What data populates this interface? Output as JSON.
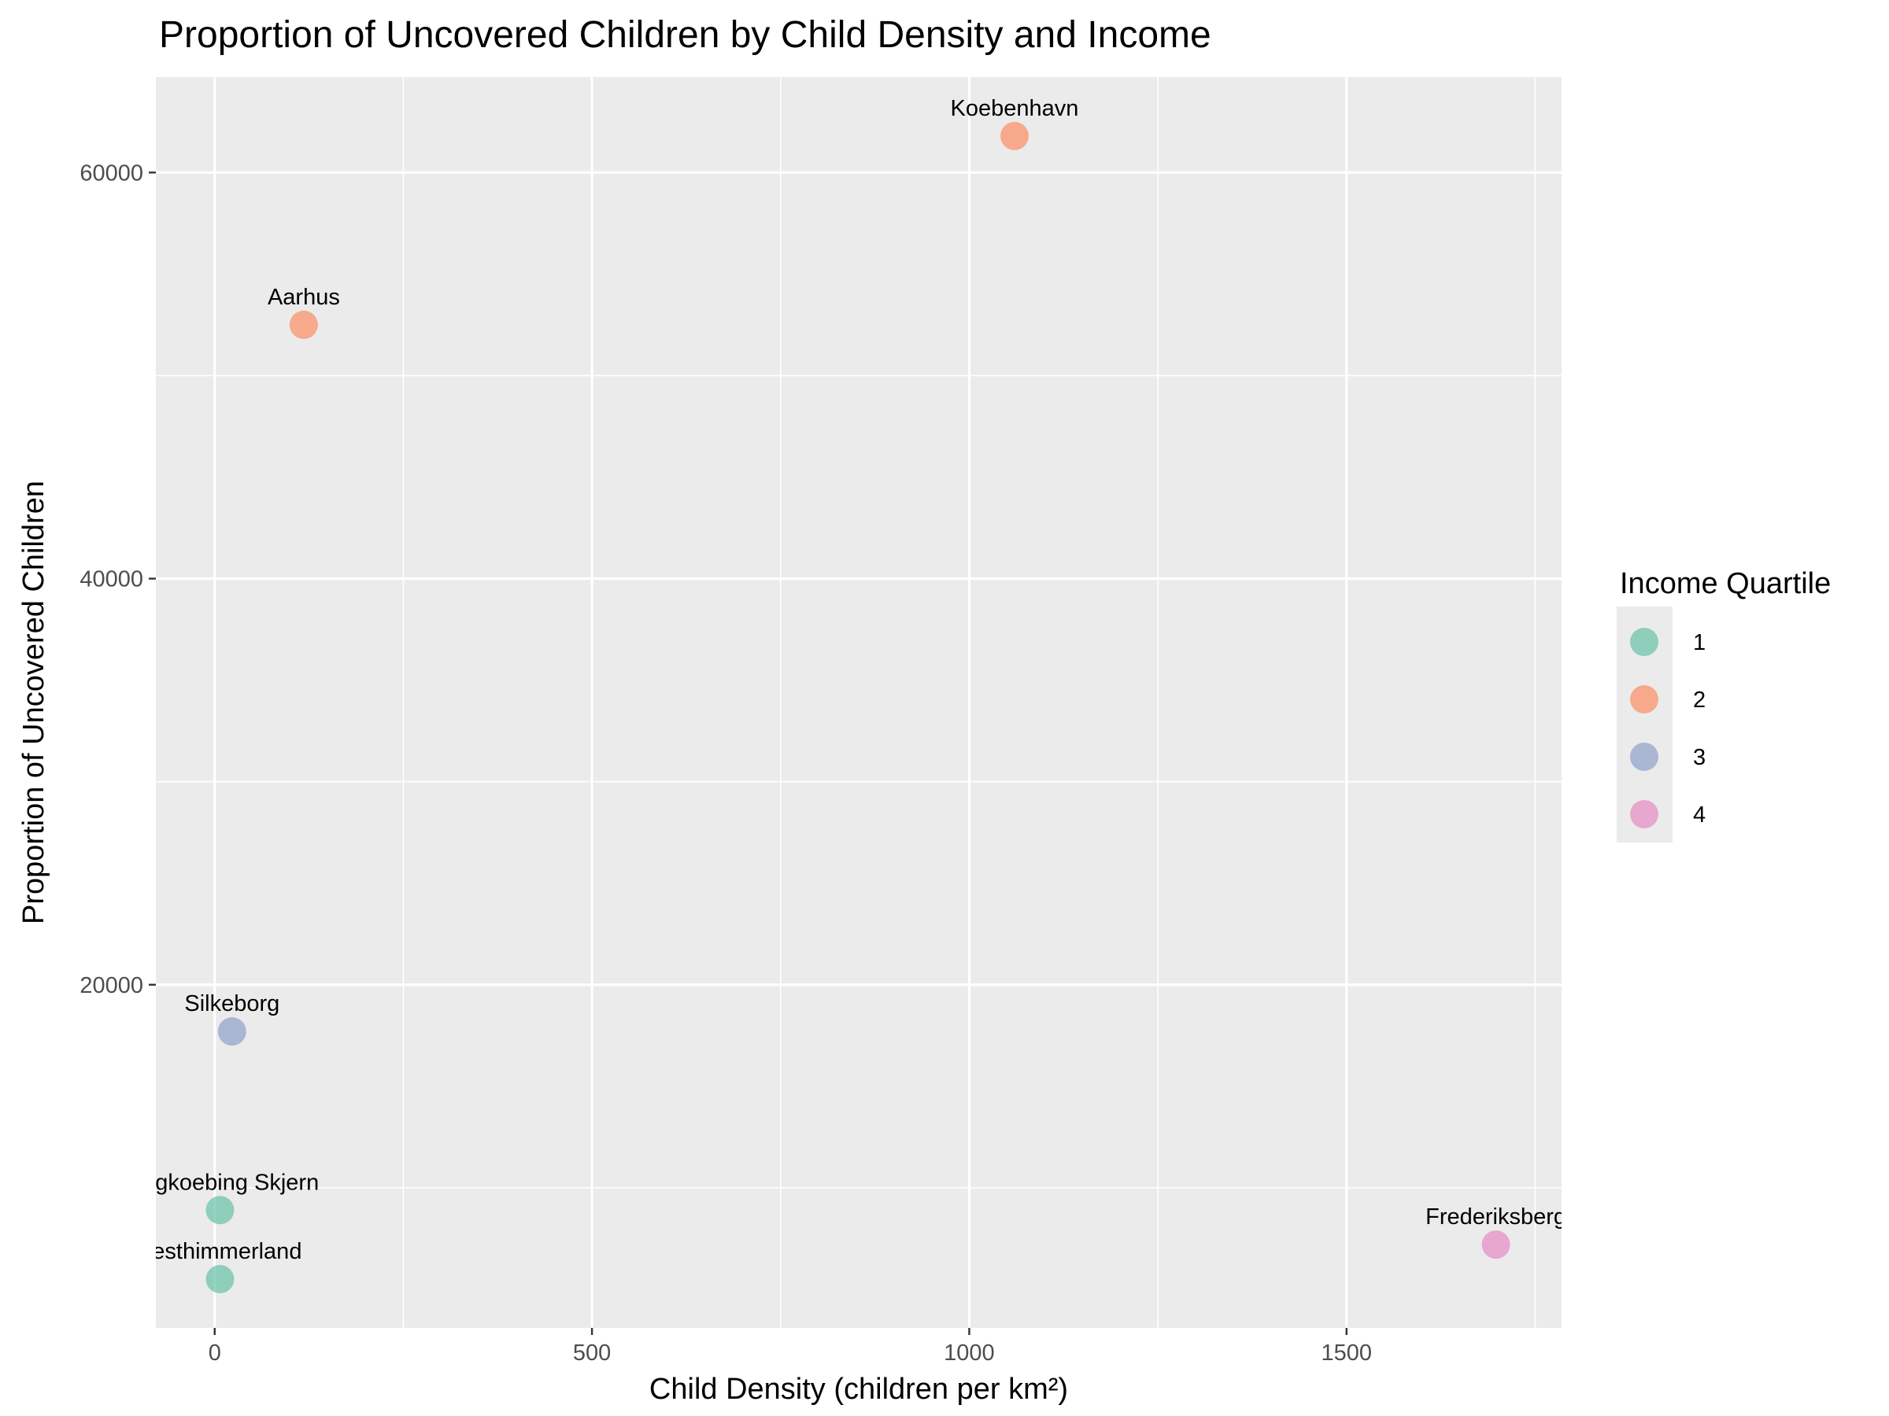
{
  "chart_data": {
    "type": "scatter",
    "title": "Proportion of Uncovered Children by Child Density and Income",
    "xlabel": "Child Density (children per km²)",
    "ylabel": "Proportion of Uncovered Children",
    "xlim": [
      -78,
      1785
    ],
    "ylim": [
      3100,
      64700
    ],
    "x_ticks": [
      0,
      500,
      1000,
      1500
    ],
    "x_tick_labels": [
      "0",
      "500",
      "1000",
      "1500"
    ],
    "y_ticks": [
      20000,
      40000,
      60000
    ],
    "y_tick_labels": [
      "20000",
      "40000",
      "60000"
    ],
    "grid": true,
    "legend": {
      "title": "Income Quartile",
      "position": "right",
      "entries": [
        {
          "label": "1",
          "color": "#66c2a5"
        },
        {
          "label": "2",
          "color": "#fc8d62"
        },
        {
          "label": "3",
          "color": "#8da0cb"
        },
        {
          "label": "4",
          "color": "#e78ac3"
        }
      ]
    },
    "points": [
      {
        "label": "Koebenhavn",
        "x": 1060,
        "y": 61800,
        "quartile": "2"
      },
      {
        "label": "Aarhus",
        "x": 118,
        "y": 52500,
        "quartile": "2"
      },
      {
        "label": "Silkeborg",
        "x": 23,
        "y": 17700,
        "quartile": "3"
      },
      {
        "label": "Ringkoebing Skjern",
        "x": 7,
        "y": 8900,
        "quartile": "1"
      },
      {
        "label": "Vesthimmerland",
        "x": 7,
        "y": 5500,
        "quartile": "1"
      },
      {
        "label": "Frederiksberg",
        "x": 1698,
        "y": 7200,
        "quartile": "4"
      }
    ]
  },
  "colors": {
    "panel_background": "#ebebeb",
    "grid_major": "#ffffff",
    "tick_text": "#4d4d4d",
    "point_alpha": 0.7
  }
}
